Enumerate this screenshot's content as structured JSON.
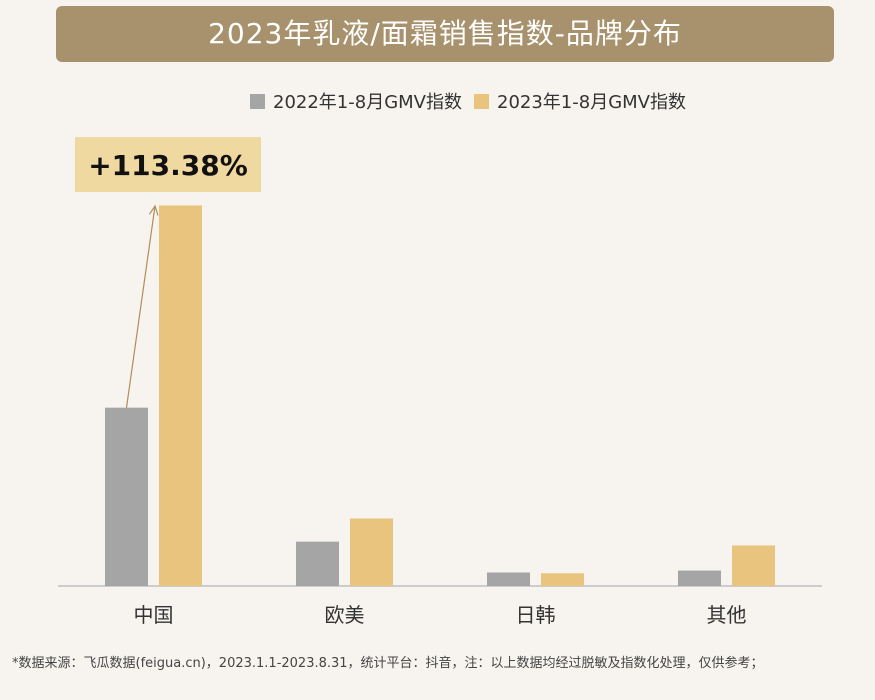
{
  "title": "2023年乳液/面霜销售指数-品牌分布",
  "colors": {
    "title_bg": "#a8926d",
    "series_2022": "#a5a5a5",
    "series_2023": "#e8c47e",
    "annotation_bg": "#f0d9a0",
    "arrow": "#b08d5a",
    "axis": "#bfbfbf"
  },
  "chart_data": {
    "type": "bar",
    "categories": [
      "中国",
      "欧美",
      "日韩",
      "其他"
    ],
    "series": [
      {
        "name": "2022年1-8月GMV指数",
        "values": [
          46.2,
          11.5,
          3.5,
          4.0
        ]
      },
      {
        "name": "2023年1-8月GMV指数",
        "values": [
          98.6,
          17.5,
          3.3,
          10.5
        ]
      }
    ],
    "ylim": [
      0,
      100
    ],
    "grid": false,
    "legend": "top",
    "annotation": {
      "category": "中国",
      "text": "+113.38%"
    }
  },
  "footnote": "*数据来源：飞瓜数据(feigua.cn)，2023.1.1-2023.8.31，统计平台：抖音，注：以上数据均经过脱敏及指数化处理，仅供参考；"
}
